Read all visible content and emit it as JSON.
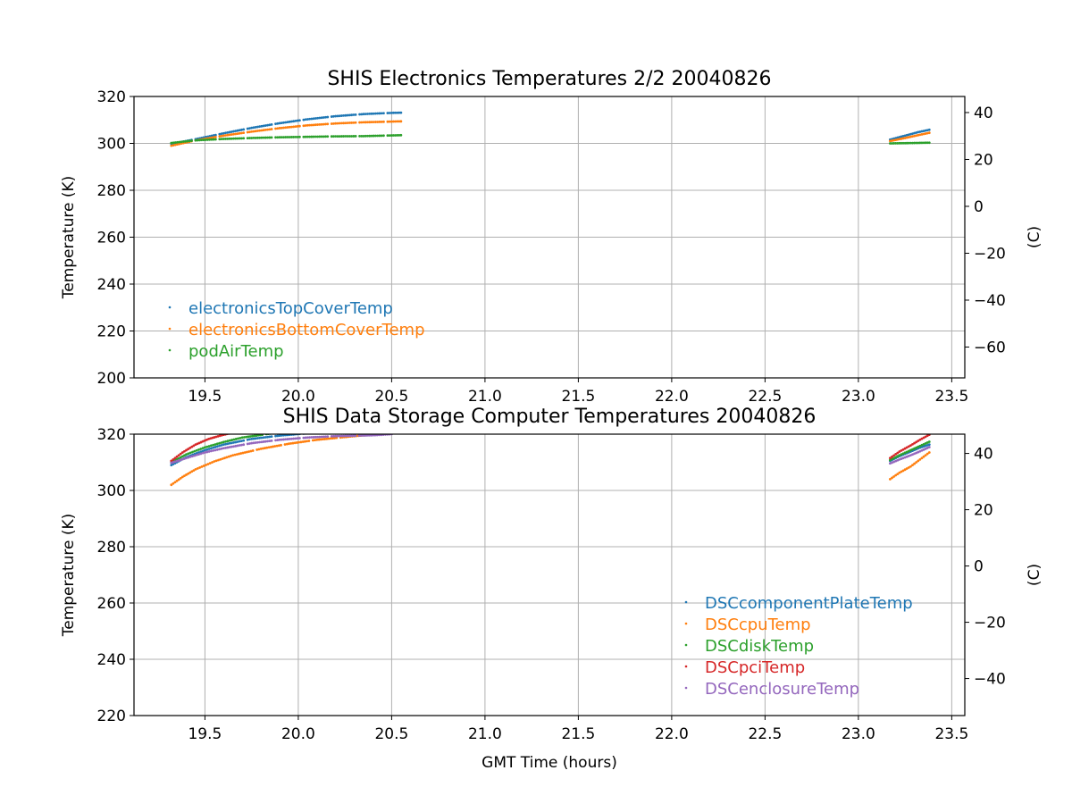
{
  "chart_data": [
    {
      "type": "scatter",
      "title": "SHIS Electronics Temperatures 2/2 20040826",
      "xlabel": "",
      "ylabel": "Temperature (K)",
      "y2label": "(C)",
      "xlim": [
        19.12,
        23.57
      ],
      "ylim": [
        200,
        320
      ],
      "xticks": [
        19.5,
        20.0,
        20.5,
        21.0,
        21.5,
        22.0,
        22.5,
        23.0,
        23.5
      ],
      "yticks": [
        200,
        220,
        240,
        260,
        280,
        300,
        320
      ],
      "y2ticks": [
        40,
        20,
        0,
        -20,
        -40,
        -60
      ],
      "grid": true,
      "legend": "lower-left",
      "series": [
        {
          "name": "electronicsTopCoverTemp",
          "color": "#1f77b4",
          "segments": [
            [
              [
                19.32,
                299.8
              ],
              [
                19.45,
                301.8
              ],
              [
                19.6,
                304.3
              ],
              [
                19.75,
                306.6
              ],
              [
                19.9,
                308.6
              ],
              [
                20.05,
                310.3
              ],
              [
                20.2,
                311.6
              ],
              [
                20.35,
                312.5
              ],
              [
                20.5,
                313.0
              ],
              [
                20.55,
                313.1
              ]
            ],
            [
              [
                23.17,
                301.6
              ],
              [
                23.25,
                303.3
              ],
              [
                23.32,
                304.8
              ],
              [
                23.38,
                305.8
              ]
            ]
          ]
        },
        {
          "name": "electronicsBottomCoverTemp",
          "color": "#ff7f0e",
          "segments": [
            [
              [
                19.32,
                299.0
              ],
              [
                19.45,
                301.3
              ],
              [
                19.6,
                303.3
              ],
              [
                19.75,
                305.0
              ],
              [
                19.9,
                306.5
              ],
              [
                20.05,
                307.7
              ],
              [
                20.2,
                308.5
              ],
              [
                20.35,
                309.0
              ],
              [
                20.5,
                309.3
              ],
              [
                20.55,
                309.4
              ]
            ],
            [
              [
                23.17,
                301.0
              ],
              [
                23.25,
                302.3
              ],
              [
                23.32,
                303.5
              ],
              [
                23.38,
                304.5
              ]
            ]
          ]
        },
        {
          "name": "podAirTemp",
          "color": "#2ca02c",
          "segments": [
            [
              [
                19.32,
                300.2
              ],
              [
                19.45,
                301.3
              ],
              [
                19.6,
                301.9
              ],
              [
                19.75,
                302.3
              ],
              [
                19.9,
                302.6
              ],
              [
                20.05,
                302.8
              ],
              [
                20.2,
                303.0
              ],
              [
                20.35,
                303.1
              ],
              [
                20.5,
                303.4
              ],
              [
                20.55,
                303.5
              ]
            ],
            [
              [
                23.17,
                300.0
              ],
              [
                23.25,
                300.1
              ],
              [
                23.32,
                300.2
              ],
              [
                23.38,
                300.3
              ]
            ]
          ]
        }
      ]
    },
    {
      "type": "scatter",
      "title": "SHIS Data Storage Computer Temperatures 20040826",
      "xlabel": "GMT Time (hours)",
      "ylabel": "Temperature (K)",
      "y2label": "(C)",
      "xlim": [
        19.12,
        23.57
      ],
      "ylim": [
        220,
        320
      ],
      "xticks": [
        19.5,
        20.0,
        20.5,
        21.0,
        21.5,
        22.0,
        22.5,
        23.0,
        23.5
      ],
      "yticks": [
        220,
        240,
        260,
        280,
        300,
        320
      ],
      "y2ticks": [
        40,
        20,
        0,
        -20,
        -40
      ],
      "grid": true,
      "legend": "lower-right",
      "series": [
        {
          "name": "DSCcomponentPlateTemp",
          "color": "#1f77b4",
          "segments": [
            [
              [
                19.32,
                309.0
              ],
              [
                19.4,
                311.8
              ],
              [
                19.5,
                314.3
              ],
              [
                19.6,
                316.3
              ],
              [
                19.75,
                318.3
              ],
              [
                19.9,
                319.5
              ],
              [
                20.05,
                320.3
              ]
            ],
            [
              [
                23.17,
                310.5
              ],
              [
                23.22,
                312.2
              ],
              [
                23.28,
                313.8
              ],
              [
                23.33,
                315.2
              ],
              [
                23.38,
                316.3
              ]
            ]
          ]
        },
        {
          "name": "DSCcpuTemp",
          "color": "#ff7f0e",
          "segments": [
            [
              [
                19.32,
                302.0
              ],
              [
                19.38,
                304.8
              ],
              [
                19.45,
                307.5
              ],
              [
                19.55,
                310.3
              ],
              [
                19.65,
                312.5
              ],
              [
                19.8,
                314.8
              ],
              [
                19.95,
                316.6
              ],
              [
                20.1,
                318.0
              ],
              [
                20.3,
                319.3
              ],
              [
                20.45,
                320.2
              ]
            ],
            [
              [
                23.17,
                304.0
              ],
              [
                23.22,
                306.3
              ],
              [
                23.28,
                308.5
              ],
              [
                23.33,
                311.0
              ],
              [
                23.38,
                313.5
              ]
            ]
          ]
        },
        {
          "name": "DSCdiskTemp",
          "color": "#2ca02c",
          "segments": [
            [
              [
                19.32,
                310.0
              ],
              [
                19.4,
                312.8
              ],
              [
                19.5,
                315.3
              ],
              [
                19.6,
                317.2
              ],
              [
                19.7,
                318.8
              ],
              [
                19.85,
                320.2
              ]
            ],
            [
              [
                23.17,
                310.8
              ],
              [
                23.22,
                312.5
              ],
              [
                23.28,
                314.3
              ],
              [
                23.33,
                315.8
              ],
              [
                23.38,
                317.3
              ]
            ]
          ]
        },
        {
          "name": "DSCpciTemp",
          "color": "#d62728",
          "segments": [
            [
              [
                19.32,
                310.5
              ],
              [
                19.38,
                313.5
              ],
              [
                19.45,
                316.3
              ],
              [
                19.52,
                318.3
              ],
              [
                19.6,
                319.8
              ],
              [
                19.65,
                320.5
              ]
            ],
            [
              [
                23.17,
                311.5
              ],
              [
                23.22,
                313.8
              ],
              [
                23.28,
                316.0
              ],
              [
                23.33,
                318.0
              ],
              [
                23.38,
                319.8
              ]
            ]
          ]
        },
        {
          "name": "DSCenclosureTemp",
          "color": "#9467bd",
          "segments": [
            [
              [
                19.32,
                309.8
              ],
              [
                19.4,
                311.5
              ],
              [
                19.5,
                313.5
              ],
              [
                19.6,
                315.0
              ],
              [
                19.75,
                316.8
              ],
              [
                19.9,
                318.0
              ],
              [
                20.05,
                318.8
              ],
              [
                20.2,
                319.3
              ],
              [
                20.4,
                319.6
              ],
              [
                20.5,
                320.0
              ]
            ],
            [
              [
                23.17,
                309.6
              ],
              [
                23.22,
                311.0
              ],
              [
                23.28,
                312.5
              ],
              [
                23.33,
                313.9
              ],
              [
                23.38,
                315.4
              ]
            ]
          ]
        }
      ]
    }
  ]
}
